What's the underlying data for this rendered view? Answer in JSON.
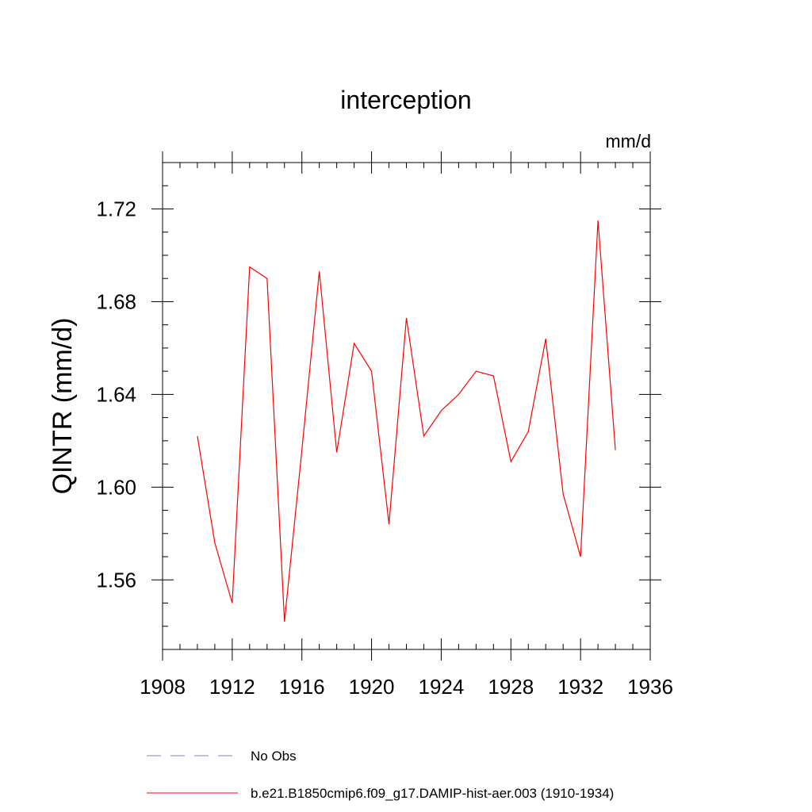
{
  "chart_data": {
    "type": "line",
    "title": "interception",
    "units": "mm/d",
    "ylabel": "QINTR  (mm/d)",
    "xlabel": "",
    "xlim": [
      1908,
      1936
    ],
    "ylim": [
      1.53,
      1.74
    ],
    "x_ticks": [
      "1908",
      "1912",
      "1916",
      "1920",
      "1924",
      "1928",
      "1932",
      "1936"
    ],
    "y_ticks": [
      "1.56",
      "1.60",
      "1.64",
      "1.68",
      "1.72"
    ],
    "grid": false,
    "legend_position": "bottom-left",
    "series": [
      {
        "name": "b.e21.B1850cmip6.f09_g17.DAMIP-hist-aer.003 (1910-1934)",
        "color": "#ff0000",
        "style": "solid",
        "x": [
          1910,
          1911,
          1912,
          1913,
          1914,
          1915,
          1916,
          1917,
          1918,
          1919,
          1920,
          1921,
          1922,
          1923,
          1924,
          1925,
          1926,
          1927,
          1928,
          1929,
          1930,
          1931,
          1932,
          1933,
          1934
        ],
        "y": [
          1.622,
          1.576,
          1.55,
          1.695,
          1.69,
          1.542,
          1.616,
          1.693,
          1.615,
          1.662,
          1.65,
          1.584,
          1.673,
          1.622,
          1.633,
          1.64,
          1.65,
          1.648,
          1.611,
          1.624,
          1.664,
          1.597,
          1.57,
          1.715,
          1.616
        ]
      },
      {
        "name": "No Obs",
        "color": "#8080c0",
        "style": "dashed",
        "x": [],
        "y": []
      }
    ]
  }
}
